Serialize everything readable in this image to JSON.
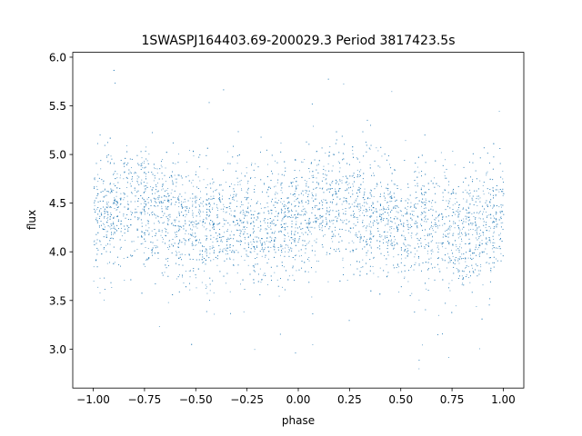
{
  "chart_data": {
    "type": "scatter",
    "title": "1SWASPJ164403.69-200029.3 Period 3817423.5s",
    "xlabel": "phase",
    "ylabel": "flux",
    "xlim": [
      -1.1,
      1.1
    ],
    "ylim": [
      2.6,
      6.05
    ],
    "x_ticks": [
      -1.0,
      -0.75,
      -0.5,
      -0.25,
      0.0,
      0.25,
      0.5,
      0.75,
      1.0
    ],
    "x_tick_labels": [
      "−1.00",
      "−0.75",
      "−0.50",
      "−0.25",
      "0.00",
      "0.25",
      "0.50",
      "0.75",
      "1.00"
    ],
    "y_ticks": [
      3.0,
      3.5,
      4.0,
      4.5,
      5.0,
      5.5,
      6.0
    ],
    "y_tick_labels": [
      "3.0",
      "3.5",
      "4.0",
      "4.5",
      "5.0",
      "5.5",
      "6.0"
    ],
    "grid": false,
    "marker_color": "#1f77b4",
    "series": [
      {
        "values_summary": "dense band of points",
        "profile": {
          "phase": [
            -1.0,
            -0.9,
            -0.8,
            -0.7,
            -0.6,
            -0.5,
            -0.4,
            -0.3,
            -0.2,
            -0.1,
            0.0,
            0.1,
            0.2,
            0.3,
            0.4,
            0.5,
            0.6,
            0.7,
            0.8,
            0.9,
            1.0
          ],
          "median_flux": [
            4.3,
            4.45,
            4.5,
            4.45,
            4.35,
            4.25,
            4.25,
            4.25,
            4.2,
            4.3,
            4.35,
            4.45,
            4.5,
            4.45,
            4.35,
            4.25,
            4.25,
            4.25,
            4.2,
            4.3,
            4.35
          ],
          "spread": [
            0.3,
            0.3,
            0.3,
            0.3,
            0.3,
            0.3,
            0.3,
            0.3,
            0.3,
            0.3,
            0.3,
            0.3,
            0.3,
            0.3,
            0.3,
            0.3,
            0.3,
            0.3,
            0.3,
            0.3,
            0.3
          ]
        }
      }
    ]
  }
}
